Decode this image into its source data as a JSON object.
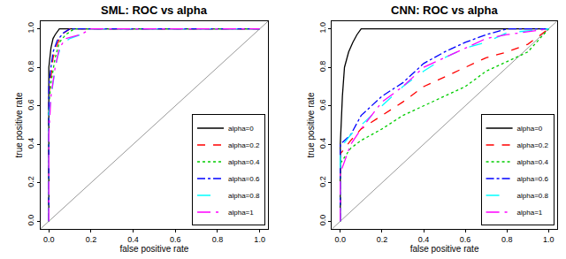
{
  "chart_data": [
    {
      "type": "line",
      "title": "SML: ROC vs alpha",
      "x_label": "false positive rate",
      "y_label": "true positive rate",
      "xlim": [
        -0.04,
        1.04
      ],
      "ylim": [
        -0.04,
        1.04
      ],
      "xticks": [
        {
          "value": 0,
          "label": "0.0"
        },
        0.2,
        0.4,
        0.6,
        0.8,
        {
          "value": 1,
          "label": "1.0"
        }
      ],
      "yticks": [
        {
          "value": 0,
          "label": "0.0"
        },
        0.2,
        0.4,
        0.6,
        0.8,
        {
          "value": 1,
          "label": "1.0"
        }
      ],
      "grid": false,
      "legend": "bottom right",
      "series": [
        {
          "name": "alpha=0",
          "color": "#000000",
          "line_style": "solid",
          "x": [
            0,
            0,
            0.01,
            0.02,
            0.03,
            0.05,
            0.08,
            1
          ],
          "values": [
            0,
            0.8,
            0.9,
            0.95,
            0.97,
            1,
            1,
            1
          ]
        },
        {
          "name": "alpha=0.2",
          "color": "#ff0000",
          "line_style": "dash",
          "x": [
            0,
            0,
            0.01,
            0.02,
            0.04,
            0.06,
            0.1,
            1
          ],
          "values": [
            0,
            0.65,
            0.75,
            0.85,
            0.92,
            0.97,
            1,
            1
          ]
        },
        {
          "name": "alpha=0.4",
          "color": "#00cd00",
          "line_style": "dot",
          "x": [
            0,
            0,
            0.01,
            0.03,
            0.05,
            0.08,
            0.12,
            1
          ],
          "values": [
            0,
            0.6,
            0.72,
            0.85,
            0.93,
            0.97,
            1,
            1
          ]
        },
        {
          "name": "alpha=0.6",
          "color": "#0000ff",
          "line_style": "dashdot",
          "x": [
            0,
            0,
            0.01,
            0.02,
            0.04,
            0.07,
            0.1,
            1
          ],
          "values": [
            0,
            0.7,
            0.8,
            0.88,
            0.94,
            0.98,
            1,
            1
          ]
        },
        {
          "name": "alpha=0.8",
          "color": "#00ffff",
          "line_style": "longdash",
          "x": [
            0,
            0,
            0.02,
            0.04,
            0.06,
            0.1,
            0.15,
            0.2,
            1
          ],
          "values": [
            0,
            0.55,
            0.72,
            0.85,
            0.92,
            0.95,
            0.97,
            1,
            1
          ]
        },
        {
          "name": "alpha=1",
          "color": "#ff00ff",
          "line_style": "longdashdot",
          "x": [
            0,
            0,
            0.01,
            0.03,
            0.05,
            0.08,
            0.15,
            0.2,
            1
          ],
          "values": [
            0,
            0.45,
            0.65,
            0.8,
            0.9,
            0.95,
            0.97,
            1,
            1
          ]
        }
      ]
    },
    {
      "type": "line",
      "title": "CNN: ROC vs alpha",
      "x_label": "false positive rate",
      "y_label": "true positive rate",
      "xlim": [
        -0.04,
        1.04
      ],
      "ylim": [
        -0.04,
        1.04
      ],
      "xticks": [
        {
          "value": 0,
          "label": "0.0"
        },
        0.2,
        0.4,
        0.6,
        0.8,
        {
          "value": 1,
          "label": "1.0"
        }
      ],
      "yticks": [
        {
          "value": 0,
          "label": "0.0"
        },
        0.2,
        0.4,
        0.6,
        0.8,
        {
          "value": 1,
          "label": "1.0"
        }
      ],
      "grid": false,
      "legend": "bottom right",
      "series": [
        {
          "name": "alpha=0",
          "color": "#000000",
          "line_style": "solid",
          "x": [
            0,
            0,
            0.01,
            0.02,
            0.04,
            0.06,
            0.08,
            0.1,
            1
          ],
          "values": [
            0,
            0.4,
            0.65,
            0.8,
            0.88,
            0.93,
            0.97,
            1,
            1
          ]
        },
        {
          "name": "alpha=0.2",
          "color": "#ff0000",
          "line_style": "dash",
          "x": [
            0,
            0,
            0.05,
            0.1,
            0.2,
            0.3,
            0.4,
            0.5,
            0.6,
            0.7,
            0.8,
            0.9,
            1
          ],
          "values": [
            0,
            0.35,
            0.42,
            0.48,
            0.55,
            0.62,
            0.7,
            0.75,
            0.8,
            0.85,
            0.88,
            0.92,
            1
          ]
        },
        {
          "name": "alpha=0.4",
          "color": "#00cd00",
          "line_style": "dot",
          "x": [
            0,
            0,
            0.05,
            0.1,
            0.2,
            0.3,
            0.4,
            0.5,
            0.6,
            0.7,
            0.8,
            0.9,
            1
          ],
          "values": [
            0,
            0.3,
            0.38,
            0.42,
            0.48,
            0.55,
            0.6,
            0.65,
            0.7,
            0.78,
            0.83,
            0.88,
            1
          ]
        },
        {
          "name": "alpha=0.6",
          "color": "#0000ff",
          "line_style": "dashdot",
          "x": [
            0,
            0,
            0.05,
            0.1,
            0.2,
            0.3,
            0.4,
            0.5,
            0.6,
            0.7,
            0.8,
            1
          ],
          "values": [
            0,
            0.4,
            0.45,
            0.55,
            0.65,
            0.72,
            0.82,
            0.88,
            0.93,
            0.97,
            1,
            1
          ]
        },
        {
          "name": "alpha=0.8",
          "color": "#00ffff",
          "line_style": "longdash",
          "x": [
            0,
            0,
            0.05,
            0.1,
            0.2,
            0.3,
            0.4,
            0.5,
            0.6,
            0.7,
            0.8,
            1
          ],
          "values": [
            0,
            0.38,
            0.45,
            0.5,
            0.6,
            0.7,
            0.78,
            0.85,
            0.9,
            0.93,
            0.98,
            1
          ]
        },
        {
          "name": "alpha=1",
          "color": "#ff00ff",
          "line_style": "longdashdot",
          "x": [
            0,
            0,
            0.05,
            0.1,
            0.2,
            0.3,
            0.4,
            0.5,
            0.6,
            0.7,
            0.8,
            1
          ],
          "values": [
            0,
            0.25,
            0.4,
            0.48,
            0.62,
            0.7,
            0.8,
            0.85,
            0.9,
            0.95,
            0.97,
            1
          ]
        }
      ]
    }
  ]
}
